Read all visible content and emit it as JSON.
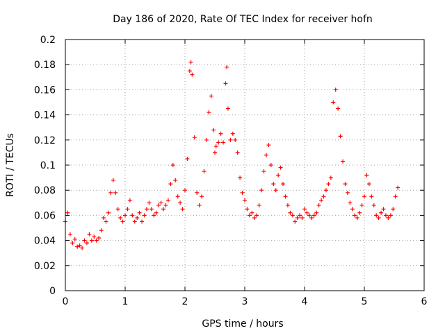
{
  "chart_data": {
    "type": "scatter",
    "title": "Day 186 of 2020, Rate Of TEC Index for receiver hofn",
    "xlabel": "GPS time / hours",
    "ylabel": "ROTI / TECUs",
    "xlim": [
      0,
      6
    ],
    "ylim": [
      0,
      0.2
    ],
    "x_ticks": [
      "0",
      "1",
      "2",
      "3",
      "4",
      "5",
      "6"
    ],
    "y_ticks": [
      "0",
      "0.02",
      "0.04",
      "0.06",
      "0.08",
      "0.1",
      "0.12",
      "0.14",
      "0.16",
      "0.18",
      "0.2"
    ],
    "grid": true,
    "marker": "+",
    "color": "#ff0000",
    "series": [
      {
        "x": [
          0.0,
          0.04,
          0.08,
          0.12,
          0.16,
          0.2,
          0.24,
          0.28,
          0.32,
          0.36,
          0.4,
          0.44,
          0.48,
          0.52,
          0.56,
          0.6,
          0.64,
          0.68,
          0.72,
          0.76,
          0.8,
          0.84,
          0.88,
          0.92,
          0.96,
          1.0,
          1.04,
          1.08,
          1.12,
          1.16,
          1.2,
          1.24,
          1.28,
          1.32,
          1.36,
          1.4,
          1.44,
          1.48,
          1.52,
          1.56,
          1.6,
          1.64,
          1.68,
          1.72,
          1.76,
          1.8,
          1.84,
          1.88,
          1.92,
          1.96,
          2.0,
          2.04,
          2.08,
          2.1,
          2.12,
          2.16,
          2.2,
          2.24,
          2.28,
          2.32,
          2.36,
          2.4,
          2.44,
          2.48,
          2.5,
          2.52,
          2.56,
          2.6,
          2.64,
          2.68,
          2.7,
          2.72,
          2.76,
          2.8,
          2.84,
          2.88,
          2.92,
          2.96,
          3.0,
          3.04,
          3.08,
          3.12,
          3.16,
          3.2,
          3.24,
          3.28,
          3.32,
          3.36,
          3.4,
          3.44,
          3.48,
          3.52,
          3.56,
          3.6,
          3.64,
          3.68,
          3.72,
          3.76,
          3.8,
          3.84,
          3.88,
          3.92,
          3.96,
          4.0,
          4.04,
          4.08,
          4.12,
          4.16,
          4.2,
          4.24,
          4.28,
          4.32,
          4.36,
          4.4,
          4.44,
          4.48,
          4.52,
          4.56,
          4.6,
          4.64,
          4.68,
          4.72,
          4.76,
          4.8,
          4.84,
          4.88,
          4.92,
          4.96,
          5.0,
          5.04,
          5.08,
          5.12,
          5.16,
          5.2,
          5.24,
          5.28,
          5.32,
          5.36,
          5.4,
          5.44,
          5.48,
          5.52,
          5.56
        ],
        "y": [
          0.055,
          0.062,
          0.045,
          0.038,
          0.041,
          0.035,
          0.036,
          0.034,
          0.04,
          0.038,
          0.045,
          0.04,
          0.043,
          0.04,
          0.042,
          0.048,
          0.058,
          0.055,
          0.062,
          0.078,
          0.088,
          0.078,
          0.065,
          0.058,
          0.055,
          0.06,
          0.065,
          0.072,
          0.06,
          0.055,
          0.058,
          0.062,
          0.055,
          0.06,
          0.065,
          0.07,
          0.065,
          0.06,
          0.062,
          0.068,
          0.07,
          0.065,
          0.068,
          0.072,
          0.085,
          0.1,
          0.088,
          0.075,
          0.07,
          0.065,
          0.08,
          0.105,
          0.175,
          0.182,
          0.172,
          0.122,
          0.078,
          0.068,
          0.075,
          0.095,
          0.12,
          0.142,
          0.155,
          0.128,
          0.11,
          0.115,
          0.118,
          0.125,
          0.118,
          0.165,
          0.178,
          0.145,
          0.12,
          0.125,
          0.12,
          0.11,
          0.09,
          0.078,
          0.072,
          0.065,
          0.06,
          0.062,
          0.058,
          0.06,
          0.068,
          0.08,
          0.095,
          0.108,
          0.116,
          0.1,
          0.085,
          0.08,
          0.092,
          0.098,
          0.085,
          0.075,
          0.068,
          0.062,
          0.06,
          0.055,
          0.058,
          0.06,
          0.058,
          0.065,
          0.062,
          0.06,
          0.058,
          0.06,
          0.062,
          0.068,
          0.072,
          0.075,
          0.08,
          0.085,
          0.09,
          0.15,
          0.16,
          0.145,
          0.123,
          0.103,
          0.085,
          0.078,
          0.07,
          0.065,
          0.06,
          0.058,
          0.062,
          0.068,
          0.075,
          0.092,
          0.085,
          0.075,
          0.068,
          0.06,
          0.058,
          0.062,
          0.065,
          0.06,
          0.058,
          0.06,
          0.065,
          0.075,
          0.082
        ]
      }
    ]
  }
}
